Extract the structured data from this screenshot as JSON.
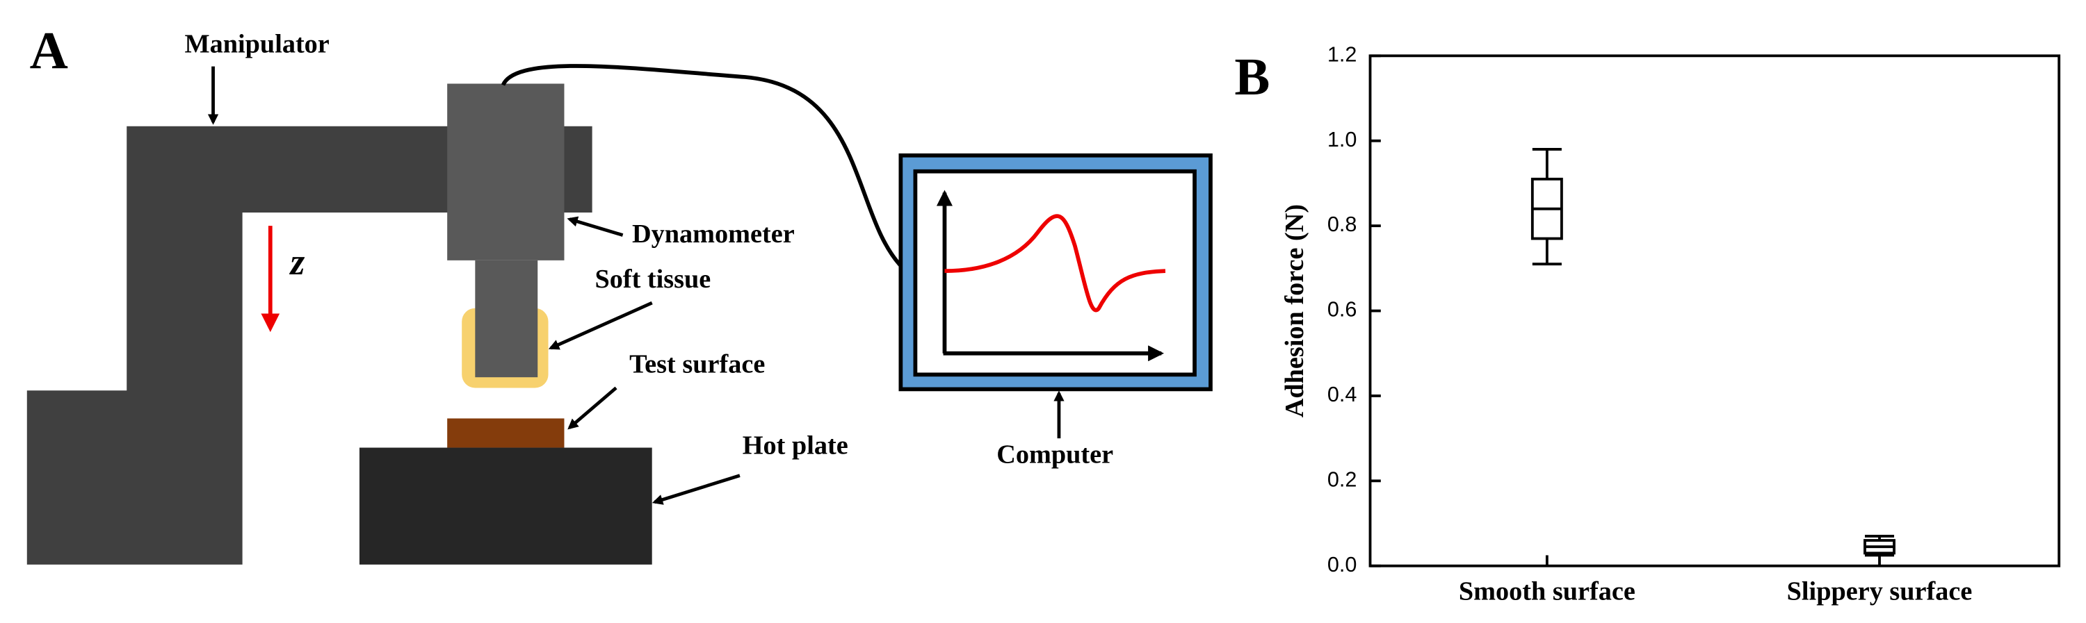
{
  "panel_a": {
    "label": "A",
    "manipulator": "Manipulator",
    "axis": "z",
    "dynamometer": "Dynamometer",
    "soft_tissue": "Soft tissue",
    "test_surface": "Test surface",
    "hot_plate": "Hot plate",
    "computer": "Computer"
  },
  "chart_data": {
    "type": "box",
    "panel_label": "B",
    "y_label": "Adhesion force (N)",
    "categories": [
      "Smooth surface",
      "Slippery surface"
    ],
    "min": [
      0.71,
      0.025
    ],
    "q1": [
      0.77,
      0.03
    ],
    "median": [
      0.84,
      0.045
    ],
    "q3": [
      0.91,
      0.06
    ],
    "max": [
      0.98,
      0.07
    ],
    "ylim": [
      0,
      1.2
    ],
    "yticks": [
      {
        "value": 0,
        "label": "0.0"
      },
      0.2,
      0.4,
      0.6,
      0.8,
      {
        "value": 1,
        "label": "1.0"
      },
      1.2
    ]
  }
}
